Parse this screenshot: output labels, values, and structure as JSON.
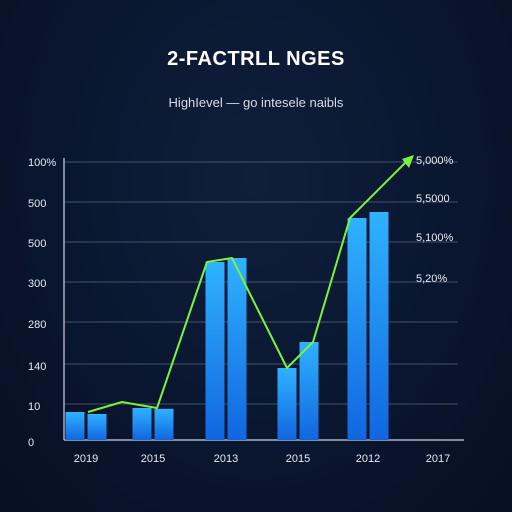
{
  "chart_data": {
    "type": "bar",
    "title": "2-FACTRLL NGES",
    "subtitle": "HighIevel — go intesele naibls",
    "left_ticks": [
      "100%",
      "500",
      "500",
      "300",
      "280",
      "140",
      "10",
      "0"
    ],
    "right_ticks": [
      "5,000%",
      "5,5000",
      "5,100%",
      "5,20%"
    ],
    "categories": [
      "2019",
      "2015",
      "2013",
      "2015",
      "2012",
      "2017"
    ],
    "series": [
      {
        "values": [
          70,
          80,
          445,
          180,
          555,
          0
        ]
      },
      {
        "values": [
          65,
          78,
          455,
          245,
          570,
          0
        ]
      }
    ],
    "line": {
      "color": "#7cf23a",
      "points": [
        70,
        95,
        80,
        445,
        455,
        180,
        245,
        555,
        700
      ]
    },
    "colors": {
      "bar_top": "#2fb2ff",
      "bar_bottom": "#1166e0",
      "grid": "#6a7890"
    },
    "grid": true
  }
}
